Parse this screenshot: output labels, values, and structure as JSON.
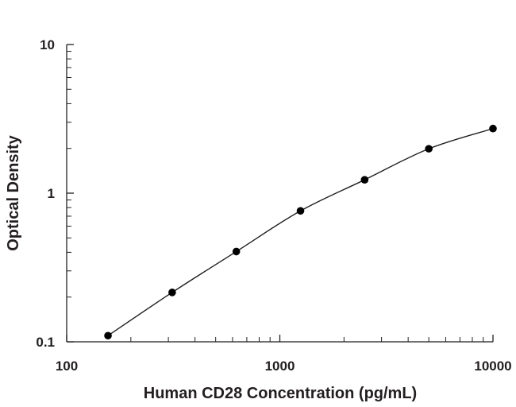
{
  "chart_data": {
    "type": "scatter",
    "title": "",
    "xlabel": "Human CD28 Concentration (pg/mL)",
    "ylabel": "Optical Density",
    "xscale": "log",
    "yscale": "log",
    "xlim": [
      100,
      10000
    ],
    "ylim": [
      0.1,
      10
    ],
    "x_ticks": [
      100,
      1000,
      10000
    ],
    "y_ticks": [
      0.1,
      1,
      10
    ],
    "x_tick_labels": [
      "100",
      "1000",
      "10000"
    ],
    "y_tick_labels": [
      "0.1",
      "1",
      "10"
    ],
    "grid": false,
    "legend": "none",
    "fit_curve": true,
    "series": [
      {
        "x": [
          156.25,
          312.5,
          625,
          1250,
          2500,
          5000,
          10000
        ],
        "y": [
          0.11,
          0.215,
          0.405,
          0.76,
          1.23,
          1.99,
          2.72
        ]
      }
    ],
    "colors": {
      "points": "#000000",
      "line": "#231f20",
      "axis": "#231f20",
      "text": "#231f20"
    }
  }
}
